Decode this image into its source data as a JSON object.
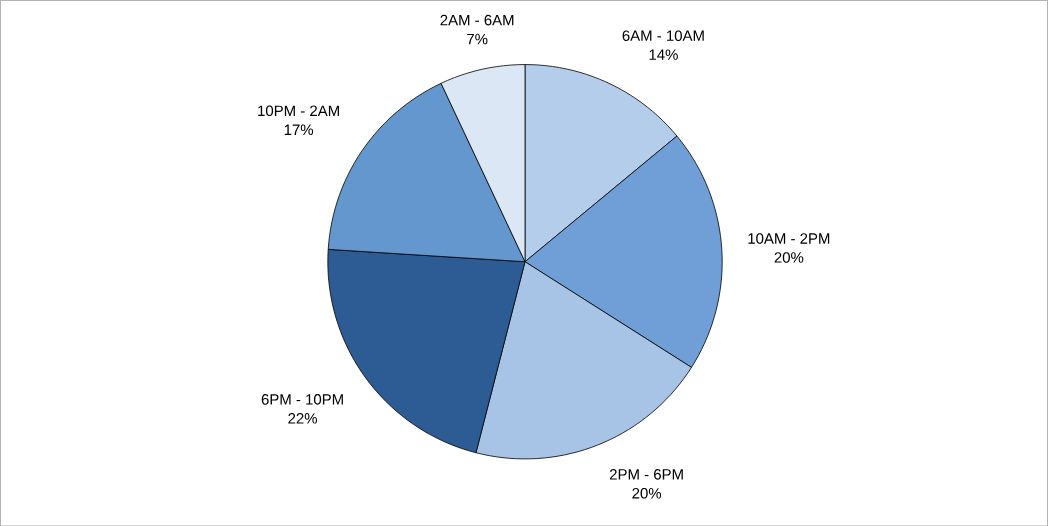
{
  "chart_data": {
    "type": "pie",
    "categories": [
      "6AM - 10AM",
      "10AM - 2PM",
      "2PM - 6PM",
      "6PM - 10PM",
      "10PM - 2AM",
      "2AM - 6AM"
    ],
    "values": [
      14,
      20,
      20,
      22,
      17,
      7
    ],
    "colors": [
      "#b4cdeb",
      "#6f9fd6",
      "#a7c3e6",
      "#2d5c95",
      "#6397cd",
      "#dce7f5"
    ],
    "value_labels": [
      "14%",
      "20%",
      "20%",
      "22%",
      "17%",
      "7%"
    ]
  }
}
